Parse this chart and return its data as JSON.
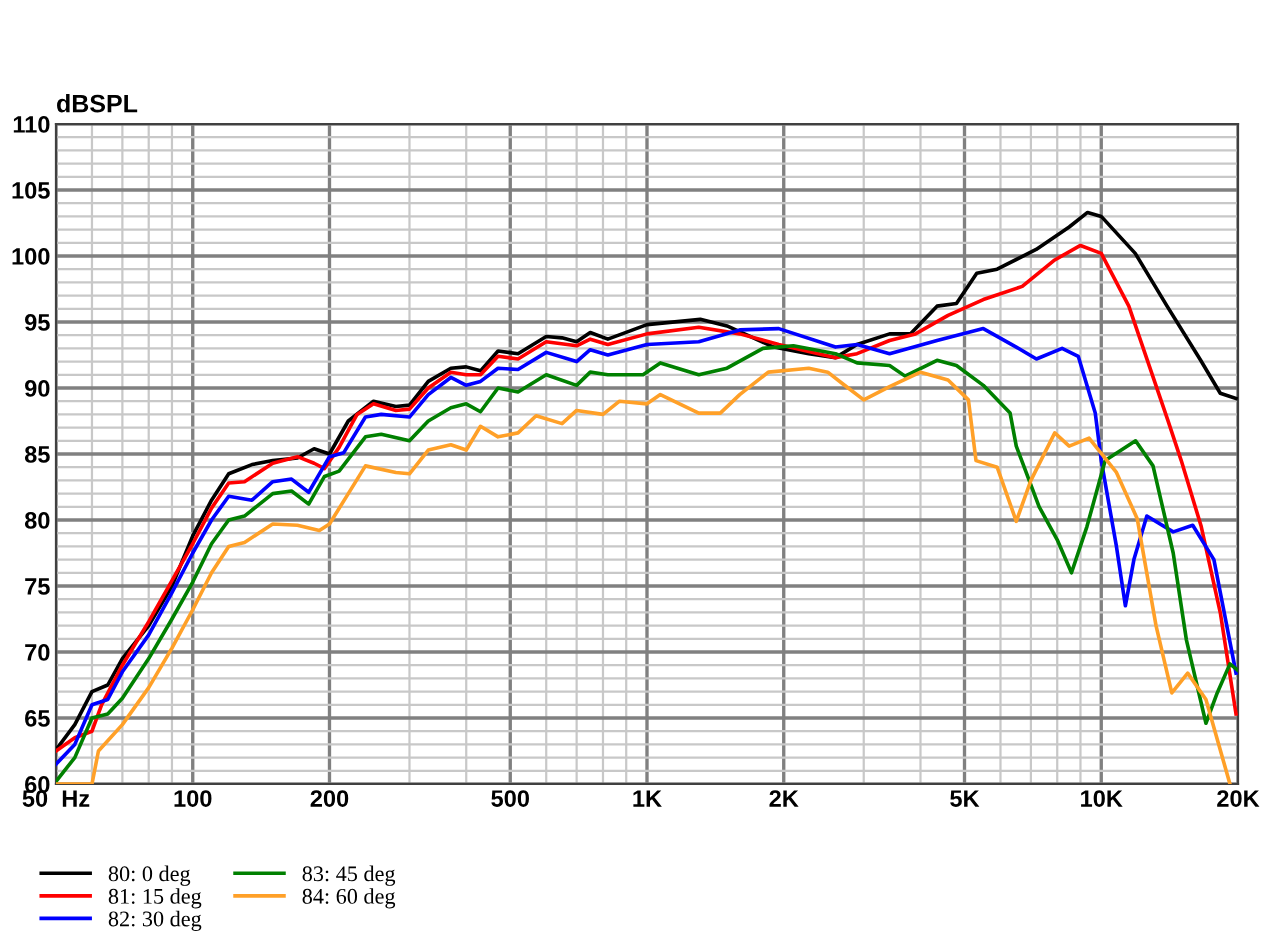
{
  "chart_data": {
    "type": "line",
    "ylabel": "dBSPL",
    "log": "x",
    "grid": true,
    "legend": "bottom left",
    "line_style": "solid",
    "xlim": [
      50,
      20000
    ],
    "ylim": [
      60,
      110
    ],
    "xticks": [
      {
        "value": 50,
        "label": "50  Hz"
      },
      100,
      200,
      500,
      {
        "value": 1000,
        "label": "1K"
      },
      {
        "value": 2000,
        "label": "2K"
      },
      {
        "value": 5000,
        "label": "5K"
      },
      {
        "value": 10000,
        "label": "10K"
      },
      {
        "value": 20000,
        "label": "20K"
      }
    ],
    "yticks": [
      60,
      65,
      70,
      75,
      80,
      85,
      90,
      95,
      100,
      105,
      110
    ],
    "series": [
      {
        "name": "80: 0 deg",
        "color": "#000000",
        "x": [
          50,
          55,
          60,
          65,
          70,
          80,
          90,
          100,
          110,
          120,
          135,
          150,
          170,
          185,
          200,
          220,
          250,
          280,
          300,
          330,
          370,
          400,
          430,
          470,
          520,
          600,
          650,
          700,
          750,
          820,
          1000,
          1310,
          1500,
          1900,
          2270,
          2600,
          2900,
          3420,
          3800,
          4350,
          4800,
          5320,
          5900,
          7190,
          8500,
          9330,
          10000,
          11880,
          13960,
          16550,
          18280,
          19800
        ],
        "values": [
          62.6,
          64.5,
          67,
          67.5,
          69.5,
          72,
          75,
          78.8,
          81.5,
          83.5,
          84.2,
          84.5,
          84.7,
          85.4,
          85,
          87.5,
          89,
          88.6,
          88.7,
          90.5,
          91.5,
          91.6,
          91.3,
          92.8,
          92.6,
          93.9,
          93.8,
          93.5,
          94.2,
          93.7,
          94.8,
          95.2,
          94.7,
          93.1,
          92.6,
          92.3,
          93.3,
          94.1,
          94.1,
          96.2,
          96.4,
          98.7,
          99,
          100.5,
          102.2,
          103.3,
          103,
          100.2,
          96.2,
          92.1,
          89.6,
          89.2
        ]
      },
      {
        "name": "81: 15 deg",
        "color": "#ff0000",
        "x": [
          50,
          55,
          60,
          63,
          70,
          80,
          90,
          100,
          110,
          120,
          130,
          150,
          170,
          185,
          195,
          210,
          230,
          250,
          280,
          300,
          330,
          370,
          400,
          430,
          470,
          520,
          600,
          700,
          750,
          820,
          1000,
          1300,
          1600,
          1950,
          2600,
          2900,
          3420,
          3900,
          4600,
          5500,
          6700,
          7900,
          9000,
          10000,
          11500,
          14000,
          15000,
          16600,
          18300,
          19800
        ],
        "values": [
          62.5,
          63.5,
          64,
          66,
          69,
          72.3,
          75.4,
          78.2,
          80.9,
          82.8,
          82.9,
          84.3,
          84.8,
          84.3,
          83.9,
          85.5,
          88,
          88.8,
          88.3,
          88.4,
          90,
          91.2,
          91,
          91,
          92.4,
          92.2,
          93.5,
          93.2,
          93.7,
          93.3,
          94.1,
          94.6,
          94.1,
          93.3,
          92.3,
          92.6,
          93.6,
          94.1,
          95.5,
          96.7,
          97.7,
          99.7,
          100.8,
          100.2,
          96.2,
          87.6,
          84.5,
          79.5,
          72.9,
          65.3
        ]
      },
      {
        "name": "82: 30 deg",
        "color": "#0000ff",
        "x": [
          50,
          55,
          60,
          65,
          70,
          80,
          90,
          100,
          110,
          120,
          135,
          150,
          165,
          180,
          200,
          215,
          240,
          260,
          300,
          330,
          370,
          400,
          430,
          470,
          520,
          600,
          700,
          750,
          820,
          1000,
          1300,
          1600,
          1950,
          2600,
          2900,
          3420,
          4350,
          5500,
          6500,
          7200,
          8200,
          8900,
          9700,
          10000,
          10800,
          11300,
          11800,
          12600,
          14400,
          15900,
          17700,
          19800
        ],
        "values": [
          61.5,
          63,
          66,
          66.4,
          68.5,
          71.3,
          74.5,
          77.5,
          80,
          81.8,
          81.5,
          82.9,
          83.1,
          82.1,
          84.8,
          85.1,
          87.8,
          88,
          87.8,
          89.5,
          90.8,
          90.2,
          90.5,
          91.5,
          91.4,
          92.7,
          92,
          92.9,
          92.5,
          93.3,
          93.5,
          94.4,
          94.5,
          93.1,
          93.3,
          92.6,
          93.6,
          94.5,
          93.1,
          92.2,
          93,
          92.4,
          88.1,
          84.5,
          78,
          73.5,
          77,
          80.3,
          79.1,
          79.6,
          77,
          68.4
        ]
      },
      {
        "name": "83: 45 deg",
        "color": "#008000",
        "x": [
          50,
          55,
          60,
          65,
          70,
          80,
          90,
          100,
          110,
          120,
          130,
          150,
          165,
          180,
          195,
          210,
          240,
          260,
          300,
          330,
          370,
          400,
          430,
          470,
          520,
          600,
          700,
          750,
          820,
          980,
          1070,
          1300,
          1500,
          1800,
          2100,
          2600,
          2900,
          3420,
          3700,
          4350,
          4800,
          5500,
          6300,
          6500,
          7300,
          8000,
          8600,
          9300,
          10200,
          11900,
          13000,
          14400,
          15400,
          17000,
          18000,
          19200,
          20000
        ],
        "values": [
          60.2,
          62,
          65,
          65.3,
          66.5,
          69.5,
          72.5,
          75.3,
          78.2,
          80,
          80.3,
          82,
          82.2,
          81.2,
          83.3,
          83.7,
          86.3,
          86.5,
          86,
          87.5,
          88.5,
          88.8,
          88.2,
          90,
          89.7,
          91,
          90.2,
          91.2,
          91,
          91,
          91.9,
          91,
          91.5,
          93,
          93.2,
          92.6,
          91.9,
          91.7,
          90.9,
          92.1,
          91.7,
          90.2,
          88.1,
          85.6,
          81,
          78.5,
          76,
          79.5,
          84.5,
          86,
          84.1,
          77.5,
          70.9,
          64.6,
          66.9,
          69.1,
          68.6
        ]
      },
      {
        "name": "84: 60 deg",
        "color": "#ffa028",
        "x": [
          50,
          60,
          62,
          70,
          80,
          90,
          100,
          110,
          120,
          130,
          150,
          170,
          190,
          200,
          220,
          240,
          280,
          300,
          330,
          370,
          400,
          430,
          470,
          520,
          570,
          650,
          700,
          800,
          870,
          1000,
          1070,
          1300,
          1450,
          1600,
          1850,
          2270,
          2500,
          2700,
          3000,
          3420,
          4000,
          4600,
          5100,
          5300,
          5900,
          6500,
          7000,
          7900,
          8500,
          9400,
          10800,
          12000,
          13200,
          14300,
          15500,
          17000,
          19200
        ],
        "values": [
          60,
          60,
          62.5,
          64.5,
          67.3,
          70.3,
          73.2,
          76,
          78,
          78.3,
          79.7,
          79.6,
          79.2,
          79.7,
          82,
          84.1,
          83.6,
          83.5,
          85.3,
          85.7,
          85.3,
          87.1,
          86.3,
          86.6,
          87.9,
          87.3,
          88.3,
          88,
          89,
          88.8,
          89.5,
          88.1,
          88.1,
          89.5,
          91.2,
          91.5,
          91.2,
          90.3,
          89.1,
          90.1,
          91.2,
          90.6,
          89.1,
          84.5,
          84,
          79.9,
          83,
          86.6,
          85.6,
          86.2,
          83.6,
          80.1,
          72,
          66.9,
          68.4,
          66.4,
          60
        ]
      }
    ]
  }
}
